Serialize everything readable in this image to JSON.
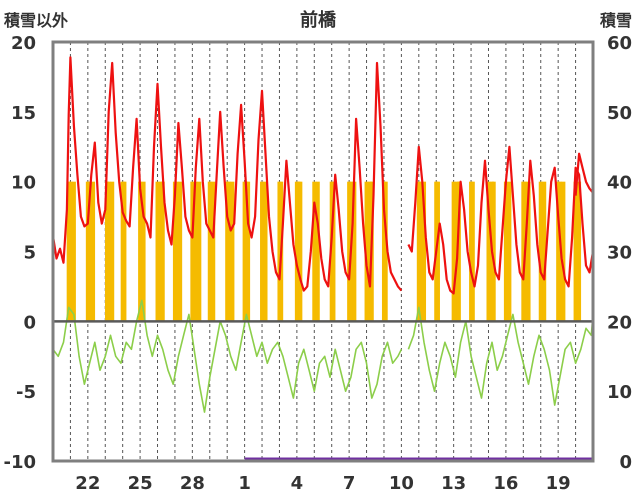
{
  "chart_data": {
    "type": "line",
    "title": "前橋",
    "ylabel_left": "積雪以外",
    "ylabel_right": "積雪",
    "yleft_range": [
      -10,
      20
    ],
    "yleft_ticks": [
      "20",
      "15",
      "10",
      "5",
      "0",
      "-5",
      "-10"
    ],
    "yright_range": [
      0,
      60
    ],
    "yright_ticks": [
      "60",
      "50",
      "40",
      "30",
      "20",
      "10",
      "0"
    ],
    "x_range": [
      20,
      51
    ],
    "x_ticks": [
      {
        "x": 22,
        "label": "22"
      },
      {
        "x": 25,
        "label": "25"
      },
      {
        "x": 28,
        "label": "28"
      },
      {
        "x": 31,
        "label": "1"
      },
      {
        "x": 34,
        "label": "4"
      },
      {
        "x": 37,
        "label": "7"
      },
      {
        "x": 40,
        "label": "10"
      },
      {
        "x": 43,
        "label": "13"
      },
      {
        "x": 46,
        "label": "16"
      },
      {
        "x": 49,
        "label": "19"
      }
    ],
    "grid": "vertical-dashed-daily",
    "colors": {
      "temperature": "#ee1111",
      "secondary": "#8cce4a",
      "bars": "#f5bb00",
      "snow": "#7030a0",
      "frame": "#7f7f7f",
      "zero_line": "#595959"
    },
    "series": [
      {
        "key": "red",
        "color": "#ee1111",
        "segments": [
          {
            "x": [
              20.0,
              20.2,
              20.4,
              20.6,
              20.8,
              20.9,
              21.0,
              21.2,
              21.4,
              21.6,
              21.8,
              22.0,
              22.2,
              22.4,
              22.6,
              22.8,
              23.0,
              23.2,
              23.4,
              23.6,
              23.8,
              24.0,
              24.2,
              24.4,
              24.6,
              24.8,
              25.0,
              25.2,
              25.4,
              25.6,
              25.8,
              26.0,
              26.2,
              26.4,
              26.6,
              26.8,
              27.0,
              27.2,
              27.4,
              27.6,
              27.8,
              28.0,
              28.2,
              28.4,
              28.6,
              28.8,
              29.0,
              29.2,
              29.4,
              29.6,
              29.8,
              30.0,
              30.2,
              30.4,
              30.6,
              30.8,
              31.0,
              31.2,
              31.4,
              31.6,
              31.8,
              32.0,
              32.2,
              32.4,
              32.6,
              32.8,
              33.0,
              33.2,
              33.4,
              33.6,
              33.8,
              34.0,
              34.2,
              34.4,
              34.6,
              34.8,
              35.0,
              35.2,
              35.4,
              35.6,
              35.8,
              36.0,
              36.2,
              36.4,
              36.6,
              36.8,
              37.0,
              37.2,
              37.4,
              37.6,
              37.8,
              38.0,
              38.2,
              38.4,
              38.6,
              38.8,
              39.0,
              39.2,
              39.4,
              39.6,
              39.8,
              40.0
            ],
            "y": [
              6.1,
              4.5,
              5.2,
              4.2,
              8.0,
              14.8,
              18.9,
              14.0,
              10.5,
              7.5,
              6.8,
              7.0,
              10.5,
              12.8,
              8.5,
              7.0,
              8.0,
              15.0,
              18.5,
              13.5,
              10.0,
              7.8,
              7.2,
              6.8,
              11.0,
              14.5,
              9.5,
              7.5,
              7.0,
              6.0,
              12.5,
              17.0,
              12.5,
              8.5,
              6.5,
              5.5,
              9.0,
              14.2,
              11.0,
              7.5,
              6.5,
              6.0,
              11.0,
              14.5,
              10.0,
              7.0,
              6.5,
              6.0,
              10.5,
              15.0,
              11.0,
              7.5,
              6.5,
              7.0,
              12.0,
              15.5,
              11.5,
              7.0,
              6.0,
              7.5,
              13.0,
              16.5,
              12.0,
              7.5,
              5.0,
              3.5,
              3.0,
              7.0,
              11.5,
              8.5,
              5.5,
              4.0,
              3.0,
              2.2,
              2.5,
              5.0,
              8.5,
              7.0,
              4.5,
              3.0,
              2.5,
              6.0,
              10.5,
              8.0,
              5.0,
              3.5,
              3.0,
              7.0,
              14.5,
              11.0,
              7.0,
              4.0,
              2.5,
              9.0,
              18.5,
              14.0,
              8.0,
              5.0,
              3.5,
              3.0,
              2.5,
              2.2
            ]
          },
          {
            "x": [
              40.4,
              40.6,
              40.8,
              41.0,
              41.2,
              41.4,
              41.6,
              41.8,
              42.0,
              42.2,
              42.4,
              42.6,
              42.8,
              43.0,
              43.2,
              43.4,
              43.6,
              43.8,
              44.0,
              44.2,
              44.4,
              44.6,
              44.8,
              45.0,
              45.2,
              45.4,
              45.6,
              45.8,
              46.0,
              46.2,
              46.4,
              46.6,
              46.8,
              47.0,
              47.2,
              47.4,
              47.6,
              47.8,
              48.0,
              48.2,
              48.4,
              48.6,
              48.8,
              49.0,
              49.2,
              49.4,
              49.6,
              49.8,
              50.0,
              50.2,
              50.4,
              50.6,
              50.8,
              51.0
            ],
            "y": [
              5.5,
              5.0,
              8.5,
              12.5,
              10.0,
              6.0,
              3.5,
              3.0,
              5.0,
              7.0,
              5.5,
              3.0,
              2.2,
              2.0,
              4.5,
              10.0,
              8.0,
              5.0,
              3.5,
              2.5,
              4.0,
              8.5,
              11.5,
              8.0,
              5.0,
              3.5,
              3.0,
              6.5,
              10.0,
              12.5,
              9.0,
              5.5,
              3.5,
              3.0,
              7.0,
              11.5,
              9.0,
              5.5,
              3.5,
              3.0,
              6.5,
              10.0,
              11.0,
              7.5,
              4.5,
              3.0,
              2.5,
              6.0,
              11.0,
              10.5,
              7.0,
              4.0,
              3.5,
              5.0
            ]
          },
          {
            "x": [
              50.0,
              50.2,
              50.4,
              50.6,
              50.8,
              51.0
            ],
            "y": [
              9.0,
              12.0,
              11.0,
              10.0,
              9.5,
              9.2
            ]
          }
        ]
      },
      {
        "key": "green",
        "color": "#8cce4a",
        "segments": [
          {
            "x": [
              20.0,
              20.3,
              20.6,
              20.9,
              21.2,
              21.5,
              21.8,
              22.1,
              22.4,
              22.7,
              23.0,
              23.3,
              23.6,
              23.9,
              24.2,
              24.5,
              24.8,
              25.1,
              25.4,
              25.7,
              26.0,
              26.3,
              26.6,
              26.9,
              27.2,
              27.5,
              27.8,
              28.1,
              28.4,
              28.7,
              29.0,
              29.3,
              29.6,
              29.9,
              30.2,
              30.5,
              30.8,
              31.1,
              31.4,
              31.7,
              32.0,
              32.3,
              32.6,
              32.9,
              33.2,
              33.5,
              33.8,
              34.1,
              34.4,
              34.7,
              35.0,
              35.3,
              35.6,
              35.9,
              36.2,
              36.5,
              36.8,
              37.1,
              37.4,
              37.7,
              38.0,
              38.3,
              38.6,
              38.9,
              39.2,
              39.5,
              39.8,
              40.0
            ],
            "y": [
              -2.0,
              -2.5,
              -1.5,
              1.0,
              0.5,
              -2.5,
              -4.5,
              -3.0,
              -1.5,
              -3.5,
              -2.5,
              -1.0,
              -2.5,
              -3.0,
              -1.5,
              -2.0,
              0.0,
              1.5,
              -1.0,
              -2.5,
              -1.0,
              -2.0,
              -3.5,
              -4.5,
              -2.5,
              -1.0,
              0.5,
              -2.0,
              -4.5,
              -6.5,
              -4.0,
              -2.0,
              0.0,
              -1.0,
              -2.5,
              -3.5,
              -1.5,
              0.5,
              -1.0,
              -2.5,
              -1.5,
              -3.0,
              -2.0,
              -1.5,
              -2.5,
              -4.0,
              -5.5,
              -3.0,
              -2.0,
              -3.5,
              -5.0,
              -3.0,
              -2.5,
              -4.0,
              -2.0,
              -3.5,
              -5.0,
              -4.0,
              -2.0,
              -1.5,
              -3.0,
              -5.5,
              -4.5,
              -2.5,
              -1.5,
              -3.0,
              -2.5,
              -2.0
            ]
          },
          {
            "x": [
              40.4,
              40.7,
              41.0,
              41.3,
              41.6,
              41.9,
              42.2,
              42.5,
              42.8,
              43.1,
              43.4,
              43.7,
              44.0,
              44.3,
              44.6,
              44.9,
              45.2,
              45.5,
              45.8,
              46.1,
              46.4,
              46.7,
              47.0,
              47.3,
              47.6,
              47.9,
              48.2,
              48.5,
              48.8,
              49.1,
              49.4,
              49.7,
              50.0,
              50.3,
              50.6,
              50.9,
              51.0
            ],
            "y": [
              -2.0,
              -1.0,
              1.0,
              -1.5,
              -3.5,
              -5.0,
              -3.0,
              -1.5,
              -2.5,
              -4.0,
              -1.5,
              0.0,
              -2.5,
              -4.0,
              -5.5,
              -3.0,
              -1.5,
              -3.5,
              -2.5,
              -1.0,
              0.5,
              -1.5,
              -3.0,
              -4.5,
              -2.5,
              -1.0,
              -2.0,
              -3.5,
              -6.0,
              -4.0,
              -2.0,
              -1.5,
              -3.0,
              -2.0,
              -0.5,
              -1.0,
              0.5
            ]
          }
        ]
      },
      {
        "key": "bars",
        "color": "#f5bb00",
        "type": "bar",
        "x": [
          20.9,
          21.0,
          21.2,
          22.0,
          22.1,
          22.3,
          23.1,
          23.2,
          23.4,
          24.0,
          24.1,
          25.0,
          25.2,
          26.0,
          26.2,
          26.3,
          27.0,
          27.1,
          27.3,
          28.0,
          28.2,
          28.4,
          29.0,
          29.2,
          30.0,
          30.1,
          30.3,
          31.0,
          31.1,
          31.2,
          32.0,
          32.2,
          33.0,
          33.1,
          34.0,
          34.1,
          34.2,
          35.0,
          35.2,
          36.0,
          36.1,
          37.0,
          37.1,
          37.3,
          38.0,
          38.2,
          38.3,
          39.0,
          39.1,
          41.0,
          41.1,
          41.3,
          42.0,
          42.1,
          43.0,
          43.2,
          43.3,
          44.0,
          44.1,
          45.0,
          45.2,
          45.3,
          46.0,
          46.2,
          47.0,
          47.1,
          47.3,
          48.0,
          48.2,
          49.0,
          49.1,
          49.3,
          50.0,
          50.2
        ],
        "y": [
          10,
          10,
          10,
          10,
          10,
          10,
          10,
          10,
          10,
          10,
          10,
          10,
          10,
          10,
          10,
          10,
          10,
          10,
          10,
          10,
          10,
          10,
          10,
          10,
          10,
          10,
          10,
          10,
          10,
          10,
          10,
          10,
          10,
          10,
          10,
          10,
          10,
          10,
          10,
          10,
          10,
          10,
          10,
          10,
          10,
          10,
          10,
          10,
          10,
          10,
          10,
          10,
          10,
          10,
          10,
          10,
          10,
          10,
          10,
          10,
          10,
          10,
          10,
          10,
          10,
          10,
          10,
          10,
          10,
          10,
          10,
          10,
          10,
          10
        ]
      },
      {
        "key": "snow",
        "color": "#7030a0",
        "axis": "right",
        "x": [
          31.0,
          51.0
        ],
        "y": [
          0,
          0
        ]
      }
    ]
  }
}
